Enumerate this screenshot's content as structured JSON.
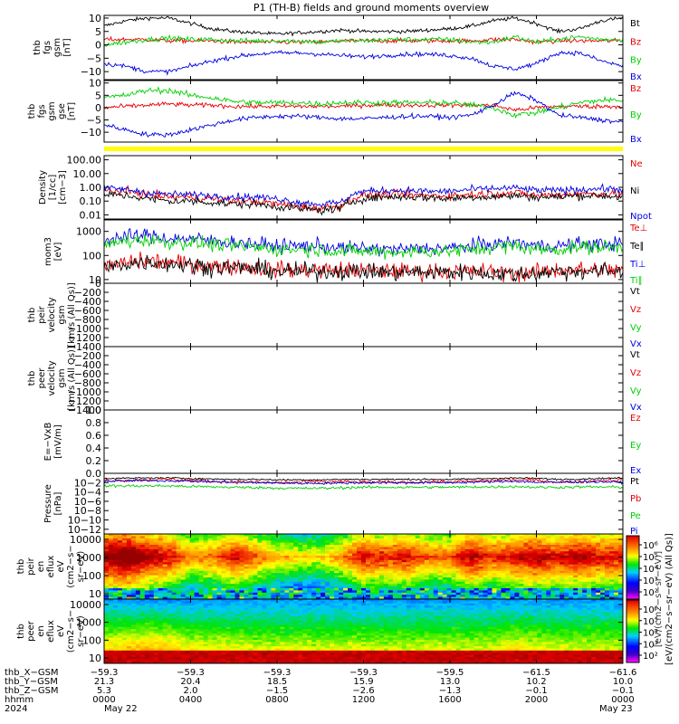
{
  "title": "P1 (TH-B) fields and ground moments overview",
  "colors": {
    "black": "#000000",
    "red": "#e60000",
    "green": "#00d000",
    "blue": "#0000e0",
    "yellow": "#ffff00"
  },
  "chart_data": [
    {
      "type": "line",
      "id": "fgs-gsm",
      "ylabel": [
        "thb",
        "fgs",
        "gsm",
        "[nT]"
      ],
      "ylim": [
        -13,
        11
      ],
      "yticks": [
        10,
        5,
        0,
        -5,
        -10
      ],
      "ytick_labels": [
        "10",
        "5",
        "0",
        "−5",
        "−10"
      ],
      "series": [
        {
          "name": "Bt",
          "color": "black",
          "mean": [
            7,
            9,
            10,
            10,
            8,
            6,
            5,
            4.5,
            4,
            4.5,
            5,
            5.5,
            5,
            5,
            5,
            5.5,
            6,
            7,
            9,
            10,
            8,
            5,
            6,
            9,
            10
          ],
          "noise": 0.6
        },
        {
          "name": "Bz",
          "color": "red",
          "mean": [
            2,
            2,
            2,
            1.5,
            1.5,
            1.5,
            1,
            1,
            1,
            1,
            1,
            1.5,
            1.5,
            1.5,
            1.5,
            1.5,
            1.5,
            1.5,
            2,
            2,
            1,
            1.5,
            1.5,
            1.5,
            1.5
          ],
          "noise": 0.7
        },
        {
          "name": "By",
          "color": "green",
          "mean": [
            0,
            1,
            2,
            2.5,
            2,
            2,
            1.5,
            1.5,
            1.5,
            1.5,
            1,
            1.5,
            1.5,
            2,
            2,
            2,
            2,
            1,
            1,
            3,
            1,
            2,
            3,
            2,
            2
          ],
          "noise": 0.8
        },
        {
          "name": "Bx",
          "color": "blue",
          "mean": [
            -7,
            -8,
            -10,
            -10,
            -8,
            -6,
            -4.5,
            -3.5,
            -3,
            -3,
            -3.5,
            -4,
            -4.5,
            -4,
            -3.5,
            -3.5,
            -4,
            -5,
            -8,
            -9,
            -7,
            -3,
            -3,
            -6,
            -8
          ],
          "noise": 0.7
        }
      ]
    },
    {
      "type": "line",
      "id": "fgs-gse",
      "ylabel": [
        "thb",
        "fgs",
        "gsm",
        "gse",
        "[nT]"
      ],
      "ylim": [
        -14,
        11
      ],
      "yticks": [
        10,
        5,
        0,
        -5,
        -10
      ],
      "ytick_labels": [
        "10",
        "5",
        "0",
        "−5",
        "−10"
      ],
      "series": [
        {
          "name": "Bz",
          "color": "red",
          "mean": [
            0,
            0.5,
            1,
            1.5,
            1,
            1,
            0.5,
            0.5,
            0.5,
            0.5,
            0.5,
            0.5,
            1,
            1,
            1,
            1,
            1,
            1,
            1,
            -1,
            0,
            0.5,
            0.5,
            0.5,
            0.5
          ],
          "noise": 0.8
        },
        {
          "name": "By",
          "color": "green",
          "mean": [
            4,
            5,
            7,
            7,
            5,
            4,
            2.5,
            2,
            2,
            2,
            1.5,
            2,
            2,
            2,
            2,
            2,
            2,
            1,
            0,
            -3,
            -2,
            0,
            2,
            3,
            3
          ],
          "noise": 1.0
        },
        {
          "name": "Bx",
          "color": "blue",
          "mean": [
            -7,
            -9,
            -11,
            -11,
            -9,
            -7,
            -5,
            -4,
            -3.5,
            -3.5,
            -4,
            -4.5,
            -4.5,
            -4,
            -3.5,
            -3.5,
            -4,
            -3,
            1,
            6,
            3,
            -3,
            -4,
            -5,
            -6
          ],
          "noise": 0.8
        }
      ]
    },
    {
      "type": "line",
      "id": "density",
      "log": true,
      "ylabel": [
        "Density",
        "[1/cc]",
        "[cm−3]"
      ],
      "ylim": [
        0.005,
        200
      ],
      "yticks": [
        100,
        10,
        1,
        0.1,
        0.01
      ],
      "ytick_labels": [
        "100.00",
        "10.00",
        "1.00",
        "0.10",
        "0.01"
      ],
      "series": [
        {
          "name": "Ne",
          "color": "red",
          "mean": [
            0.6,
            0.5,
            0.3,
            0.2,
            0.2,
            0.15,
            0.1,
            0.1,
            0.06,
            0.04,
            0.03,
            0.05,
            0.25,
            0.3,
            0.3,
            0.25,
            0.25,
            0.3,
            0.35,
            0.4,
            0.25,
            0.3,
            0.35,
            0.35,
            0.3
          ],
          "noise": 0.25
        },
        {
          "name": "Ni",
          "color": "black",
          "mean": [
            0.3,
            0.25,
            0.15,
            0.1,
            0.1,
            0.08,
            0.06,
            0.06,
            0.04,
            0.03,
            0.02,
            0.03,
            0.15,
            0.2,
            0.2,
            0.18,
            0.15,
            0.2,
            0.2,
            0.25,
            0.2,
            0.2,
            0.25,
            0.25,
            0.2
          ],
          "noise": 0.25
        },
        {
          "name": "Npot",
          "color": "blue",
          "mean": [
            0.9,
            0.7,
            0.4,
            0.3,
            0.3,
            0.25,
            0.2,
            0.2,
            0.15,
            0.08,
            0.06,
            0.08,
            0.5,
            0.6,
            0.6,
            0.5,
            0.5,
            0.7,
            0.8,
            0.9,
            0.6,
            0.6,
            0.7,
            0.8,
            0.7
          ],
          "noise": 0.22
        }
      ]
    },
    {
      "type": "line",
      "id": "temperature",
      "log": true,
      "ylabel": [
        "mom3",
        "[eV]"
      ],
      "ylim": [
        7,
        3000
      ],
      "yticks": [
        1000,
        100,
        10
      ],
      "ytick_labels": [
        "1000",
        "100",
        "10"
      ],
      "series": [
        {
          "name": "Te⊥",
          "color": "red",
          "mean": [
            30,
            50,
            60,
            50,
            45,
            35,
            35,
            30,
            25,
            25,
            25,
            25,
            25,
            22,
            22,
            22,
            22,
            22,
            20,
            18,
            20,
            25,
            25,
            25,
            25
          ],
          "noise": 0.3
        },
        {
          "name": "Te∥",
          "color": "black",
          "mean": [
            28,
            45,
            55,
            45,
            40,
            32,
            32,
            28,
            22,
            22,
            22,
            22,
            22,
            20,
            20,
            20,
            20,
            20,
            18,
            16,
            18,
            22,
            22,
            22,
            22
          ],
          "noise": 0.3
        },
        {
          "name": "Ti⊥",
          "color": "blue",
          "mean": [
            400,
            600,
            700,
            500,
            500,
            400,
            350,
            300,
            250,
            250,
            250,
            200,
            200,
            180,
            180,
            200,
            200,
            250,
            300,
            350,
            250,
            250,
            300,
            300,
            300
          ],
          "noise": 0.25
        },
        {
          "name": "Ti∥",
          "color": "green",
          "mean": [
            250,
            400,
            450,
            350,
            350,
            280,
            250,
            220,
            180,
            180,
            180,
            150,
            150,
            140,
            140,
            150,
            150,
            180,
            220,
            250,
            180,
            180,
            220,
            220,
            220
          ],
          "noise": 0.25
        }
      ]
    },
    {
      "type": "line",
      "id": "peir-velocity",
      "empty": true,
      "ylabel": [
        "thb",
        "peir",
        "velocity",
        "gsm",
        "[km/s (All Qs)]"
      ],
      "ylim": [
        -1400,
        0
      ],
      "yticks": [
        0,
        -200,
        -400,
        -600,
        -800,
        -1000,
        -1200,
        -1400
      ],
      "ytick_labels": [
        "0",
        "−200",
        "−400",
        "−600",
        "−800",
        "−1000",
        "−1200",
        "−1400"
      ],
      "series": [
        {
          "name": "Vt",
          "color": "black"
        },
        {
          "name": "Vz",
          "color": "red"
        },
        {
          "name": "Vy",
          "color": "green"
        },
        {
          "name": "Vx",
          "color": "blue"
        }
      ]
    },
    {
      "type": "line",
      "id": "peer-velocity",
      "empty": true,
      "ylabel": [
        "thb",
        "peer",
        "velocity",
        "gsm",
        "[km/s (All Qs)]"
      ],
      "ylim": [
        -1400,
        0
      ],
      "yticks": [
        -200,
        -400,
        -600,
        -800,
        -1000,
        -1200,
        -1400
      ],
      "ytick_labels": [
        "−200",
        "−400",
        "−600",
        "−800",
        "−1000",
        "−1200",
        "−1400"
      ],
      "series": [
        {
          "name": "Vt",
          "color": "black"
        },
        {
          "name": "Vz",
          "color": "red"
        },
        {
          "name": "Vy",
          "color": "green"
        },
        {
          "name": "Vx",
          "color": "blue"
        }
      ]
    },
    {
      "type": "line",
      "id": "efield",
      "empty": true,
      "ylabel": [
        "E=−VxB",
        "[mV/m]"
      ],
      "ylim": [
        0,
        1
      ],
      "yticks": [
        1,
        0.8,
        0.6,
        0.4,
        0.2,
        0
      ],
      "ytick_labels": [
        "1.0",
        "0.8",
        "0.6",
        "0.4",
        "0.2",
        "0.0"
      ],
      "series": [
        {
          "name": "Ez",
          "color": "red"
        },
        {
          "name": "Ey",
          "color": "green"
        },
        {
          "name": "Ex",
          "color": "blue"
        }
      ]
    },
    {
      "type": "line",
      "id": "pressure",
      "log": true,
      "ylabel": [
        "Pressure",
        "[nPa]"
      ],
      "ylim": [
        1e-13,
        1
      ],
      "yticks": [
        0.01,
        0.0001,
        1e-06,
        1e-08,
        1e-10,
        1e-12
      ],
      "ytick_labels": [
        "10−2",
        "10−4",
        "10−6",
        "10−8",
        "10−10",
        "10−12"
      ],
      "series": [
        {
          "name": "Pt",
          "color": "black",
          "mean": [
            0.08,
            0.09,
            0.1,
            0.1,
            0.08,
            0.06,
            0.05,
            0.05,
            0.04,
            0.04,
            0.04,
            0.05,
            0.05,
            0.05,
            0.05,
            0.05,
            0.05,
            0.06,
            0.08,
            0.1,
            0.08,
            0.05,
            0.06,
            0.08,
            0.1
          ],
          "noise": 0.15
        },
        {
          "name": "Pb",
          "color": "red",
          "mean": [
            0.03,
            0.03,
            0.04,
            0.05,
            0.03,
            0.02,
            0.015,
            0.012,
            0.01,
            0.012,
            0.015,
            0.015,
            0.012,
            0.012,
            0.012,
            0.015,
            0.015,
            0.02,
            0.03,
            0.04,
            0.03,
            0.012,
            0.015,
            0.03,
            0.04
          ],
          "noise": 0.3
        },
        {
          "name": "Pe",
          "color": "green",
          "mean": [
            0.002,
            0.002,
            0.002,
            0.002,
            0.0015,
            0.0012,
            0.001,
            0.0009,
            0.0007,
            0.0006,
            0.0006,
            0.0008,
            0.001,
            0.001,
            0.001,
            0.001,
            0.001,
            0.0012,
            0.0012,
            0.0015,
            0.001,
            0.001,
            0.0012,
            0.0012,
            0.001
          ],
          "noise": 0.25
        },
        {
          "name": "Pi",
          "color": "blue",
          "mean": [
            0.02,
            0.025,
            0.03,
            0.025,
            0.02,
            0.015,
            0.012,
            0.01,
            0.008,
            0.007,
            0.007,
            0.008,
            0.01,
            0.01,
            0.01,
            0.01,
            0.01,
            0.012,
            0.015,
            0.02,
            0.012,
            0.012,
            0.015,
            0.015,
            0.012
          ],
          "noise": 0.2
        }
      ]
    },
    {
      "type": "heatmap",
      "id": "peir-eflux",
      "ylabel": [
        "thb",
        "peir",
        "en",
        "eflux",
        "eV",
        "(cm2−s−",
        "sr−eV)"
      ],
      "ylim": [
        5,
        20000
      ],
      "log": true,
      "yticks": [
        10000,
        1000,
        100,
        10
      ],
      "ytick_labels": [
        "10000",
        "1000",
        "100",
        "10"
      ],
      "intensity": [
        0.8,
        0.85,
        0.75,
        0.7,
        0.55,
        0.6,
        0.7,
        0.6,
        0.5,
        0.45,
        0.45,
        0.55,
        0.7,
        0.65,
        0.7,
        0.6,
        0.6,
        0.75,
        0.65,
        0.7,
        0.75,
        0.7,
        0.75,
        0.7,
        0.7
      ]
    },
    {
      "type": "heatmap",
      "id": "peer-eflux",
      "ylabel": [
        "thb",
        "peer",
        "en",
        "eflux",
        "eV",
        "(cm2−s−",
        "sr−eV)"
      ],
      "ylim": [
        5,
        20000
      ],
      "log": true,
      "yticks": [
        10000,
        1000,
        100,
        10
      ],
      "ytick_labels": [
        "10000",
        "1000",
        "100",
        "10"
      ],
      "intensity": [
        0.7,
        0.75,
        0.8,
        0.75,
        0.65,
        0.65,
        0.65,
        0.6,
        0.6,
        0.6,
        0.6,
        0.6,
        0.6,
        0.6,
        0.6,
        0.6,
        0.6,
        0.6,
        0.6,
        0.7,
        0.65,
        0.6,
        0.6,
        0.6,
        0.6
      ]
    }
  ],
  "colorbar": {
    "tick_labels": [
      "10⁶",
      "10⁵",
      "10⁴",
      "10³",
      "10²",
      "10⁶",
      "10⁵",
      "10⁴",
      "10³",
      "10²"
    ],
    "label": "[eV/(cm2−s−sr−eV) (All Qs)]",
    "label2": "[eV/(cm2−s−sr−eV)]"
  },
  "xaxis": {
    "row_labels": [
      "thb_X−GSM",
      "thb_Y−GSM",
      "thb_Z−GSM",
      "hhmm",
      "2024"
    ],
    "ticks": [
      {
        "hours": 0,
        "vals": [
          "−59.3",
          "21.3",
          "5.3",
          "0000",
          "May 22"
        ]
      },
      {
        "hours": 4,
        "vals": [
          "−59.3",
          "20.4",
          "2.0",
          "0400",
          ""
        ]
      },
      {
        "hours": 8,
        "vals": [
          "−59.3",
          "18.5",
          "−1.5",
          "0800",
          ""
        ]
      },
      {
        "hours": 12,
        "vals": [
          "−59.3",
          "15.9",
          "−2.6",
          "1200",
          ""
        ]
      },
      {
        "hours": 16,
        "vals": [
          "−59.5",
          "13.0",
          "−1.3",
          "1600",
          ""
        ]
      },
      {
        "hours": 20,
        "vals": [
          "−61.5",
          "10.2",
          "−0.1",
          "2000",
          ""
        ]
      },
      {
        "hours": 24,
        "vals": [
          "−61.6",
          "10.0",
          "−0.1",
          "0000",
          "May 23"
        ]
      }
    ]
  }
}
